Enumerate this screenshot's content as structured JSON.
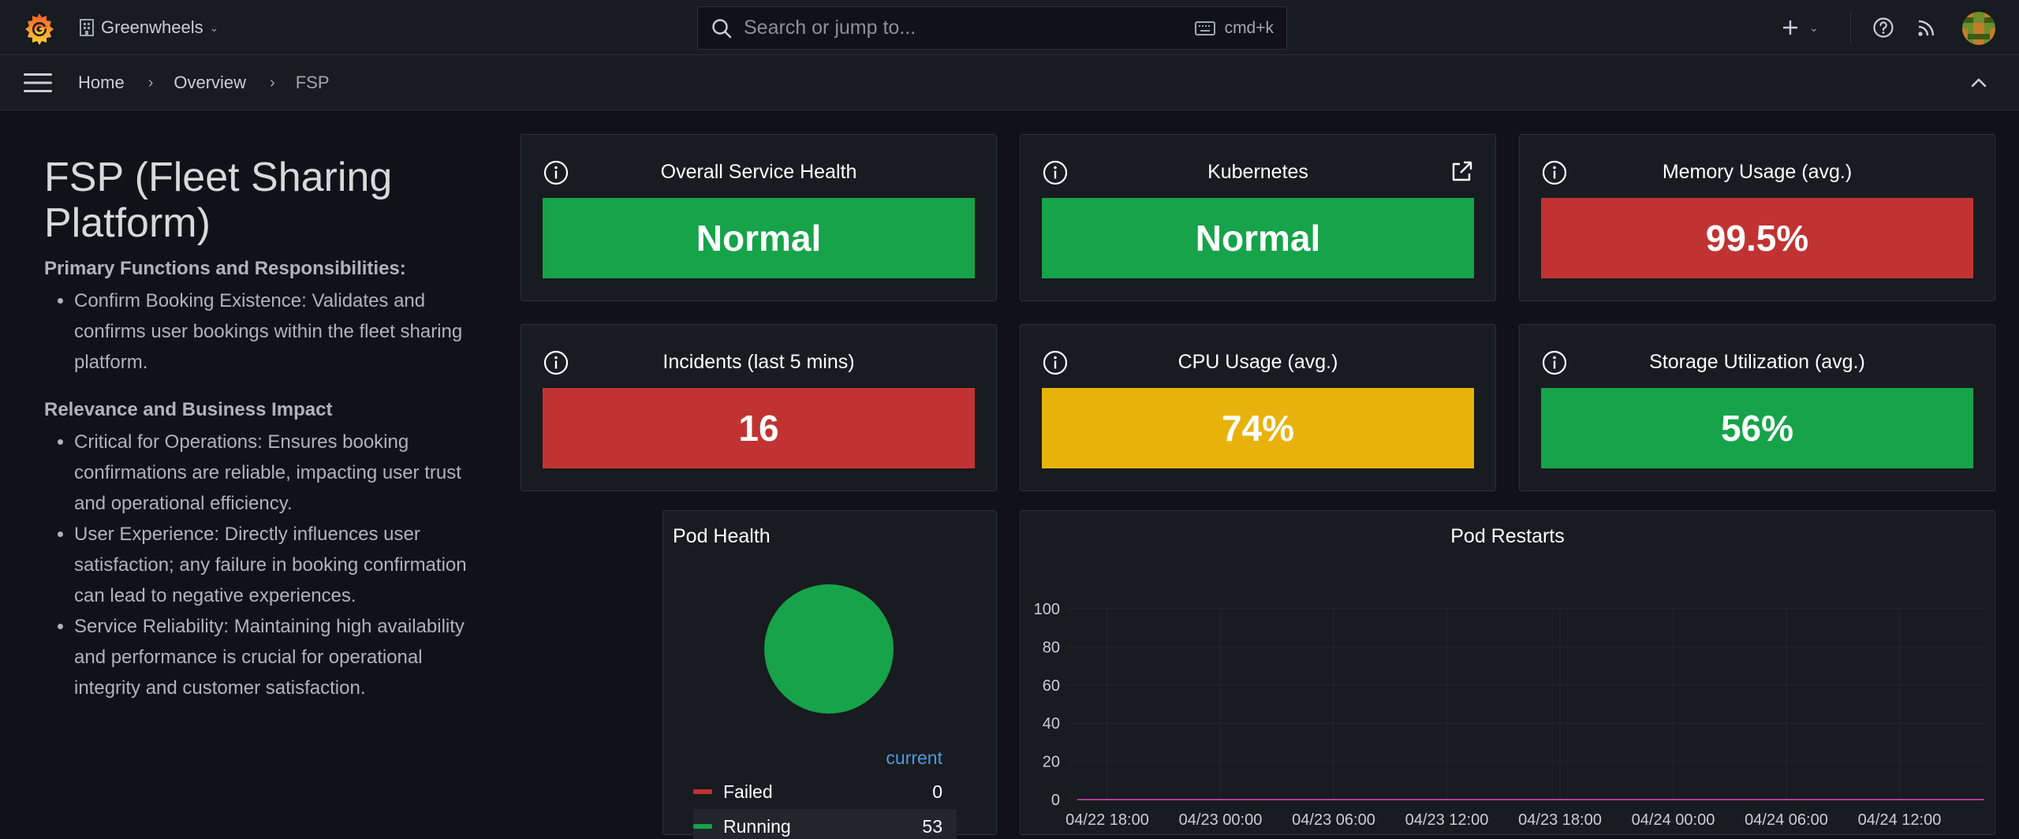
{
  "topbar": {
    "org_name": "Greenwheels",
    "search_placeholder": "Search or jump to...",
    "search_shortcut": "cmd+k",
    "icons": [
      "grafana-logo-icon",
      "building-icon",
      "search-icon",
      "keyboard-icon",
      "plus-icon",
      "help-icon",
      "rss-icon",
      "avatar"
    ]
  },
  "breadcrumb": {
    "items": [
      "Home",
      "Overview",
      "FSP"
    ]
  },
  "text_panel": {
    "title": "FSP (Fleet Sharing Platform)",
    "section1_heading": "Primary Functions and Responsibilities:",
    "section1_items": [
      "Confirm Booking Existence: Validates and confirms user bookings within the fleet sharing platform."
    ],
    "section2_heading": "Relevance and Business Impact",
    "section2_items": [
      "Critical for Operations: Ensures booking confirmations are reliable, impacting user trust and operational efficiency.",
      "User Experience: Directly influences user satisfaction; any failure in booking confirmation can lead to negative experiences.",
      "Service Reliability: Maintaining high availability and performance is crucial for operational integrity and customer satisfaction."
    ]
  },
  "stats": [
    {
      "title": "Overall Service Health",
      "value": "Normal",
      "color": "#16a34a"
    },
    {
      "title": "Kubernetes",
      "value": "Normal",
      "color": "#16a34a"
    },
    {
      "title": "Memory Usage (avg.)",
      "value": "99.5%",
      "color": "#c13333"
    },
    {
      "title": "Incidents (last 5 mins)",
      "value": "16",
      "color": "#c13333"
    },
    {
      "title": "CPU Usage (avg.)",
      "value": "74%",
      "color": "#e8b20c"
    },
    {
      "title": "Storage Utilization (avg.)",
      "value": "56%",
      "color": "#16a34a"
    }
  ],
  "pod_health": {
    "title": "Pod Health",
    "legend_header": "current",
    "items": [
      {
        "name": "Failed",
        "value": "0",
        "color": "#c13333"
      },
      {
        "name": "Running",
        "value": "53",
        "color": "#16a34a"
      }
    ]
  },
  "chart_data": [
    {
      "type": "pie",
      "title": "Pod Health",
      "categories": [
        "Failed",
        "Running"
      ],
      "values": [
        0,
        53
      ],
      "colors": [
        "#c13333",
        "#16a34a"
      ]
    },
    {
      "type": "line",
      "title": "Pod Restarts",
      "x": [
        "04/22 18:00",
        "04/23 00:00",
        "04/23 06:00",
        "04/23 12:00",
        "04/23 18:00",
        "04/24 00:00",
        "04/24 06:00",
        "04/24 12:00"
      ],
      "series": [
        {
          "values": [
            0,
            0,
            0,
            0,
            0,
            0,
            0,
            0
          ],
          "color": "#b03a9e"
        }
      ],
      "ylim": [
        0,
        100
      ],
      "yticks": [
        0,
        20,
        40,
        60,
        80,
        100
      ],
      "grid": true
    }
  ]
}
